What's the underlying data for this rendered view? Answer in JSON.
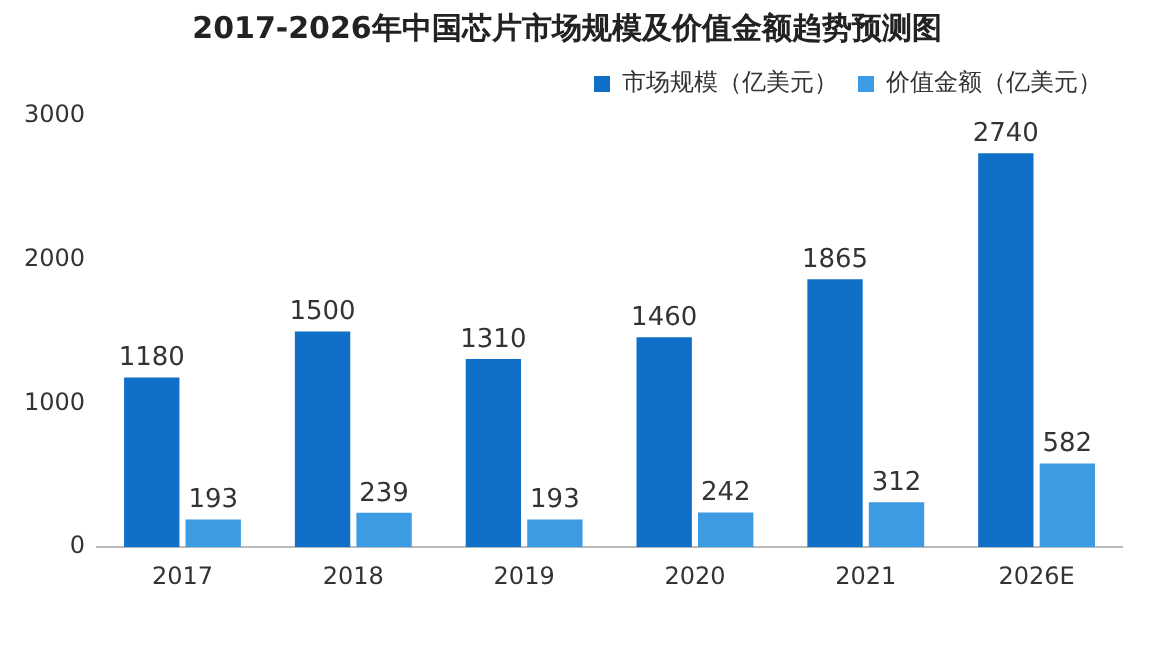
{
  "chart_data": {
    "type": "bar",
    "title": "2017-2026年中国芯片市场规模及价值金额趋势预测图",
    "categories": [
      "2017",
      "2018",
      "2019",
      "2020",
      "2021",
      "2026E"
    ],
    "series": [
      {
        "name": "市场规模（亿美元）",
        "color": "#1070c8",
        "values": [
          1180,
          1500,
          1310,
          1460,
          1865,
          2740
        ]
      },
      {
        "name": "价值金额（亿美元）",
        "color": "#3d9be3",
        "values": [
          193,
          239,
          193,
          242,
          312,
          582
        ]
      }
    ],
    "ylim": [
      0,
      3000
    ],
    "yticks": [
      0,
      1000,
      2000,
      3000
    ],
    "grid": false,
    "legend": "top right",
    "data_labels": true
  }
}
